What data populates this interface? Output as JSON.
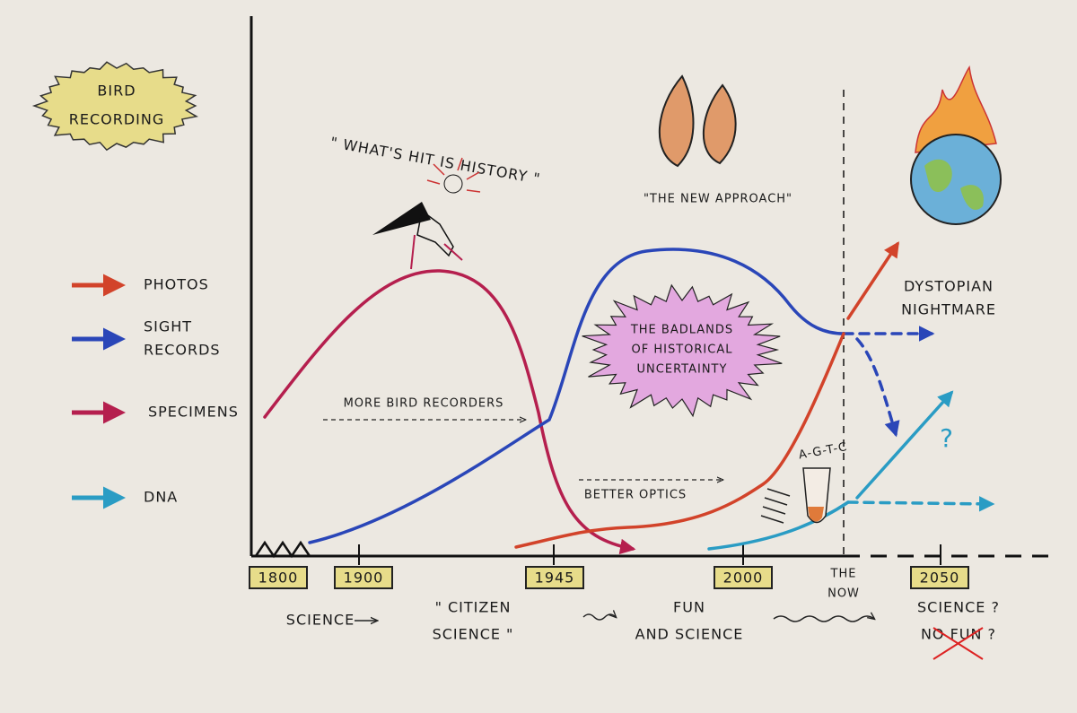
{
  "badge": {
    "lines": [
      "BIRD",
      "RECORDING"
    ]
  },
  "quotes": {
    "history": "\" WHAT'S HIT IS HISTORY \"",
    "new_approach": "\"THE NEW APPROACH\""
  },
  "legend": [
    {
      "label": [
        "PHOTOS"
      ],
      "color": "#d2432a"
    },
    {
      "label": [
        "SIGHT",
        "RECORDS"
      ],
      "color": "#2a46b8"
    },
    {
      "label": [
        "SPECIMENS"
      ],
      "color": "#b51f4e"
    },
    {
      "label": [
        "DNA"
      ],
      "color": "#2a9cc4"
    }
  ],
  "annotations": {
    "more_recorders": "MORE BIRD RECORDERS",
    "better_optics": "BETTER OPTICS",
    "badlands": [
      "THE BADLANDS",
      "OF HISTORICAL",
      "UNCERTAINTY"
    ],
    "dystopian": [
      "DYSTOPIAN",
      "NIGHTMARE"
    ],
    "dna_code": "A-G-T-C",
    "question": "?"
  },
  "timeline": {
    "years": [
      "1800",
      "1900",
      "1945",
      "2000",
      "2050"
    ],
    "now": [
      "THE",
      "NOW"
    ]
  },
  "eras": [
    {
      "lines": [
        "SCIENCE"
      ]
    },
    {
      "lines": [
        "\" CITIZEN",
        "SCIENCE \""
      ]
    },
    {
      "lines": [
        "FUN",
        "AND SCIENCE"
      ]
    },
    {
      "lines": [
        "SCIENCE ?",
        "NO FUN ?"
      ]
    }
  ]
}
